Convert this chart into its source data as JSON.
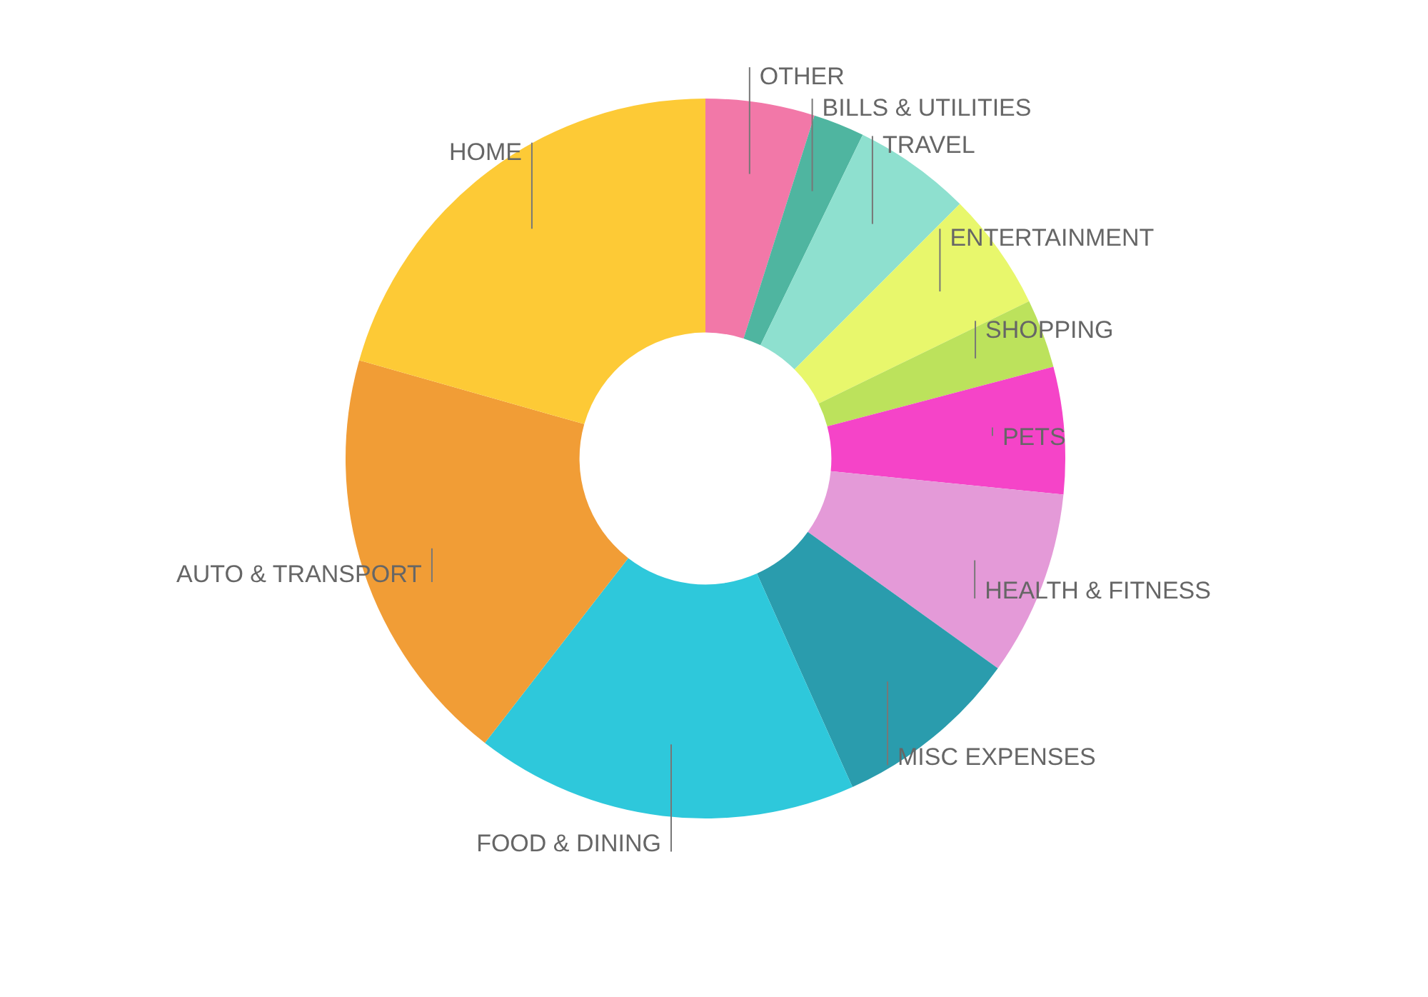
{
  "chart_data": {
    "type": "donut",
    "categories": [
      "OTHER",
      "BILLS & UTILITIES",
      "TRAVEL",
      "ENTERTAINMENT",
      "SHOPPING",
      "PETS",
      "HEALTH & FITNESS",
      "MISC EXPENSES",
      "FOOD & DINING",
      "AUTO & TRANSPORT",
      "HOME"
    ],
    "values": [
      4.9,
      2.3,
      5.3,
      5.3,
      3.1,
      5.7,
      8.3,
      8.4,
      17.2,
      18.9,
      20.6
    ],
    "colors": [
      "#f278a8",
      "#4fb5a0",
      "#8ee0cf",
      "#e8f76c",
      "#bce25c",
      "#f544c8",
      "#e49ad8",
      "#2a9cad",
      "#2ec8db",
      "#f19d36",
      "#fdca36"
    ]
  }
}
